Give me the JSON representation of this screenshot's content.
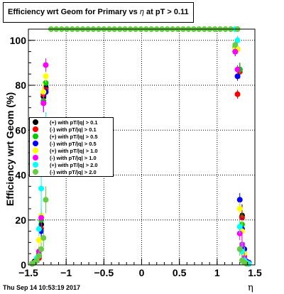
{
  "title_prefix": "Efficiency wrt Geom for Primary vs ",
  "title_eta": "η",
  "title_suffix": " at pT > 0.11",
  "timestamp": "Thu Sep 14 10:53:19 2017",
  "chart_data": {
    "type": "scatter",
    "title": "Efficiency wrt Geom for Primary vs η at pT > 0.11",
    "xlabel": "η",
    "ylabel": "Efficiency wrt Geom (%)",
    "xlim": [
      -1.5,
      1.5
    ],
    "ylim": [
      0,
      105
    ],
    "xticks": [
      {
        "v": -1.5,
        "label": "−1.5"
      },
      {
        "v": -1,
        "label": "−1"
      },
      {
        "v": -0.5,
        "label": "−0.5"
      },
      {
        "v": 0,
        "label": "0"
      },
      {
        "v": 0.5,
        "label": "0.5"
      },
      {
        "v": 1,
        "label": "1"
      },
      {
        "v": 1.5,
        "label": "1.5"
      }
    ],
    "yticks": [
      {
        "v": 0,
        "label": "0"
      },
      {
        "v": 20,
        "label": "20"
      },
      {
        "v": 40,
        "label": "40"
      },
      {
        "v": 60,
        "label": "60"
      },
      {
        "v": 80,
        "label": "80"
      },
      {
        "v": 100,
        "label": "100"
      }
    ],
    "grid": true,
    "legend_position": "left-middle",
    "series": [
      {
        "name": "(+) with pT/|q| > 0.1",
        "color": "#000000",
        "points": [
          [
            -1.45,
            0.5,
            0
          ],
          [
            -1.42,
            1.5,
            0
          ],
          [
            -1.39,
            2.5,
            1
          ],
          [
            -1.36,
            4,
            2
          ],
          [
            -1.33,
            18,
            4
          ],
          [
            -1.3,
            75,
            4
          ],
          [
            -1.27,
            79,
            3
          ],
          [
            1.24,
            95,
            2
          ],
          [
            1.27,
            96,
            2
          ],
          [
            1.3,
            87,
            3
          ],
          [
            1.33,
            22,
            5
          ],
          [
            1.36,
            5,
            3
          ],
          [
            1.39,
            1,
            0
          ],
          [
            1.42,
            0.5,
            0
          ]
        ]
      },
      {
        "name": "(-) with pT/|q| > 0.1",
        "color": "#ff0000",
        "points": [
          [
            -1.45,
            0.5,
            0
          ],
          [
            -1.42,
            1,
            0
          ],
          [
            -1.39,
            2,
            1
          ],
          [
            -1.36,
            3,
            2
          ],
          [
            -1.33,
            16,
            4
          ],
          [
            -1.3,
            76,
            4
          ],
          [
            -1.27,
            78,
            3
          ],
          [
            1.24,
            96,
            2
          ],
          [
            1.27,
            76,
            2
          ],
          [
            1.3,
            86,
            3
          ],
          [
            1.33,
            21,
            5
          ],
          [
            1.36,
            4,
            3
          ],
          [
            1.39,
            1,
            0
          ],
          [
            1.42,
            0.5,
            0
          ]
        ]
      },
      {
        "name": "(+) with pT/|q| > 0.5",
        "color": "#00cc00",
        "points": [
          [
            -1.45,
            0.5,
            0
          ],
          [
            -1.42,
            1,
            0
          ],
          [
            -1.39,
            3,
            1
          ],
          [
            -1.36,
            5,
            2
          ],
          [
            -1.33,
            20,
            4
          ],
          [
            -1.3,
            73,
            4
          ],
          [
            -1.27,
            81,
            3
          ],
          [
            1.24,
            97,
            2
          ],
          [
            1.27,
            96,
            2
          ],
          [
            1.3,
            87,
            3
          ],
          [
            1.33,
            18,
            5
          ],
          [
            1.36,
            5,
            3
          ],
          [
            1.39,
            1,
            0
          ],
          [
            1.42,
            0.5,
            0
          ]
        ]
      },
      {
        "name": "(-) with pT/|q| > 0.5",
        "color": "#0000ff",
        "points": [
          [
            -1.45,
            0.5,
            0
          ],
          [
            -1.42,
            1,
            0
          ],
          [
            -1.39,
            2,
            1
          ],
          [
            -1.36,
            4,
            2
          ],
          [
            -1.33,
            15,
            4
          ],
          [
            -1.3,
            72,
            4
          ],
          [
            -1.27,
            77,
            3
          ],
          [
            1.24,
            95,
            2
          ],
          [
            1.27,
            84,
            2
          ],
          [
            1.3,
            29,
            3
          ],
          [
            1.33,
            16,
            5
          ],
          [
            1.36,
            7,
            3
          ],
          [
            1.39,
            1.5,
            0
          ],
          [
            1.42,
            1,
            0
          ]
        ]
      },
      {
        "name": "(+) with pT/|q| > 1.0",
        "color": "#ffff00",
        "points": [
          [
            -1.45,
            0.5,
            0
          ],
          [
            -1.42,
            1,
            0
          ],
          [
            -1.39,
            3,
            1
          ],
          [
            -1.36,
            11,
            3
          ],
          [
            -1.33,
            22,
            4
          ],
          [
            -1.3,
            77,
            4
          ],
          [
            -1.27,
            84,
            3
          ],
          [
            1.24,
            96,
            2
          ],
          [
            1.27,
            96,
            2
          ],
          [
            1.3,
            25,
            3
          ],
          [
            1.33,
            15,
            5
          ],
          [
            1.36,
            5,
            3
          ],
          [
            1.39,
            1,
            0
          ],
          [
            1.42,
            0.5,
            0
          ]
        ]
      },
      {
        "name": "(-) with pT/|q| > 1.0",
        "color": "#ff00ff",
        "points": [
          [
            -1.45,
            0.5,
            0
          ],
          [
            -1.42,
            1,
            0
          ],
          [
            -1.39,
            2,
            1
          ],
          [
            -1.36,
            6,
            2
          ],
          [
            -1.33,
            21,
            4
          ],
          [
            -1.3,
            72,
            4
          ],
          [
            -1.27,
            89,
            3
          ],
          [
            1.24,
            95,
            2
          ],
          [
            1.27,
            87,
            2
          ],
          [
            1.3,
            14,
            3
          ],
          [
            1.33,
            9,
            5
          ],
          [
            1.36,
            3,
            3
          ],
          [
            1.39,
            1,
            0
          ],
          [
            1.42,
            0.5,
            0
          ]
        ]
      },
      {
        "name": "(+) with pT/|q| > 2.0",
        "color": "#00ffff",
        "points": [
          [
            -1.45,
            0.5,
            0
          ],
          [
            -1.42,
            1,
            0
          ],
          [
            -1.39,
            3,
            1
          ],
          [
            -1.36,
            16,
            3
          ],
          [
            -1.33,
            34,
            12
          ],
          [
            -1.3,
            54,
            10
          ],
          [
            -1.27,
            62,
            6
          ],
          [
            1.24,
            105,
            0
          ],
          [
            1.27,
            100,
            2
          ],
          [
            1.3,
            17,
            3
          ],
          [
            1.33,
            6,
            4
          ],
          [
            1.36,
            2,
            2
          ],
          [
            1.39,
            1,
            0
          ],
          [
            1.42,
            0.5,
            0
          ]
        ]
      },
      {
        "name": "(-) with pT/|q| > 2.0",
        "color": "#66cc44",
        "points": [
          [
            -1.45,
            0.5,
            0
          ],
          [
            -1.42,
            1,
            0
          ],
          [
            -1.39,
            2,
            1
          ],
          [
            -1.36,
            4,
            2
          ],
          [
            -1.33,
            7,
            3
          ],
          [
            -1.3,
            12,
            4
          ],
          [
            -1.27,
            29,
            6
          ],
          [
            -1.2,
            105,
            0
          ],
          [
            -1.13,
            105,
            0
          ],
          [
            -1.06,
            105,
            0
          ],
          [
            -0.99,
            105,
            0
          ],
          [
            -0.92,
            105,
            0
          ],
          [
            -0.85,
            105,
            0
          ],
          [
            -0.78,
            105,
            0
          ],
          [
            -0.71,
            105,
            0
          ],
          [
            -0.64,
            105,
            0
          ],
          [
            -0.57,
            105,
            0
          ],
          [
            -0.5,
            105,
            0
          ],
          [
            -0.43,
            105,
            0
          ],
          [
            -0.36,
            105,
            0
          ],
          [
            -0.29,
            105,
            0
          ],
          [
            -0.22,
            105,
            0
          ],
          [
            -0.15,
            105,
            0
          ],
          [
            -0.08,
            105,
            0
          ],
          [
            -0.01,
            105,
            0
          ],
          [
            0.06,
            105,
            0
          ],
          [
            0.13,
            105,
            0
          ],
          [
            0.2,
            105,
            0
          ],
          [
            0.27,
            105,
            0
          ],
          [
            0.34,
            105,
            0
          ],
          [
            0.41,
            105,
            0
          ],
          [
            0.48,
            105,
            0
          ],
          [
            0.55,
            105,
            0
          ],
          [
            0.62,
            105,
            0
          ],
          [
            0.69,
            105,
            0
          ],
          [
            0.76,
            105,
            0
          ],
          [
            0.83,
            105,
            0
          ],
          [
            0.9,
            105,
            0
          ],
          [
            0.97,
            105,
            0
          ],
          [
            1.04,
            105,
            0
          ],
          [
            1.11,
            105,
            0
          ],
          [
            1.18,
            105,
            0
          ],
          [
            1.24,
            98,
            2
          ],
          [
            1.27,
            105,
            0
          ],
          [
            1.3,
            7,
            3
          ],
          [
            1.33,
            2,
            2
          ],
          [
            1.36,
            1,
            0
          ],
          [
            1.39,
            0.5,
            0
          ]
        ]
      }
    ]
  }
}
